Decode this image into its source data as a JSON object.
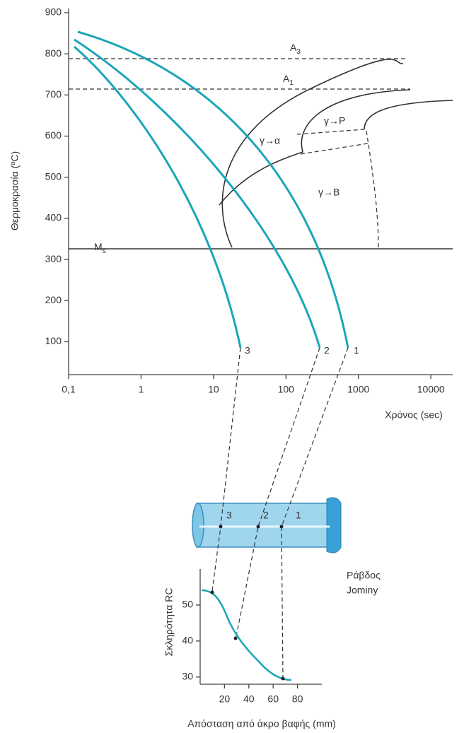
{
  "top_chart": {
    "y_label": "Θερμοκρασία (ºC)",
    "x_label": "Χρόνος (sec)",
    "ylim": [
      20,
      900
    ],
    "yticks": [
      100,
      200,
      300,
      400,
      500,
      600,
      700,
      800,
      900
    ],
    "xlim": [
      0.1,
      20000
    ],
    "xscale": "log",
    "xticks": [
      {
        "value": 0.1,
        "label": "0,1"
      },
      1,
      10,
      100,
      1000,
      10000
    ],
    "labels": {
      "a3": {
        "main": "A",
        "sub": "3"
      },
      "a1": {
        "main": "A",
        "sub": "1"
      },
      "ms": {
        "main": "M",
        "sub": "s"
      },
      "gamma_p": "γ→P",
      "gamma_a": "γ→α",
      "gamma_b": "γ→B",
      "curves": [
        "3",
        "2",
        "1"
      ]
    }
  },
  "rod": {
    "marks": [
      "3",
      "2",
      "1"
    ],
    "title": [
      "Ράβδος",
      "Jominy"
    ]
  },
  "bottom_chart": {
    "y_label": "Σκληρότητα RC",
    "x_label": "Απόσταση από άκρο βαφής (mm)",
    "ylim": [
      28,
      60
    ],
    "yticks": [
      30,
      40,
      50
    ],
    "xlim": [
      0,
      100
    ],
    "xticks": [
      20,
      40,
      60,
      80
    ]
  }
}
